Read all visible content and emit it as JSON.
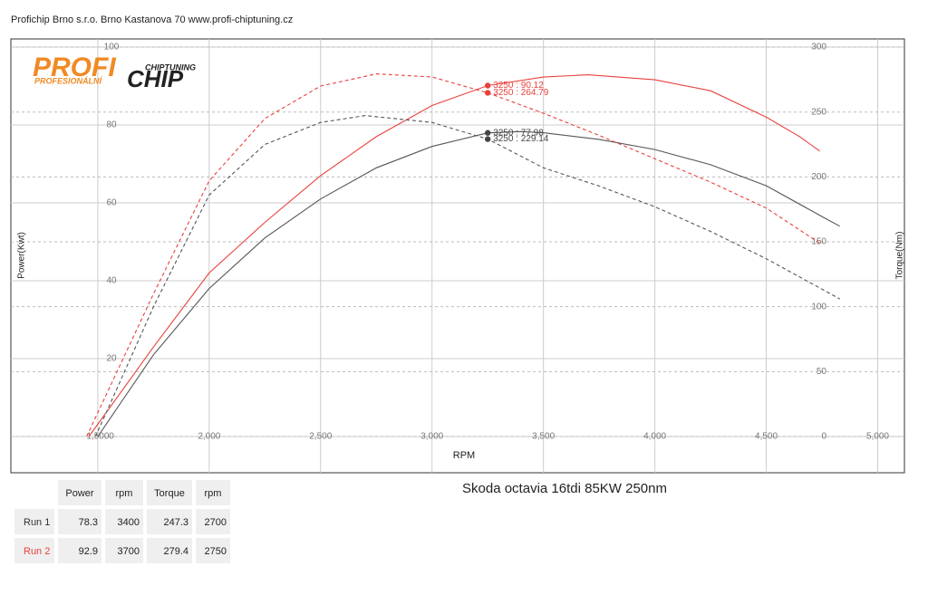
{
  "header": "Profichip Brno s.r.o. Brno Kastanova 70 www.profi-chiptuning.cz",
  "logo": {
    "main": "PROFI",
    "chip": "CHIP",
    "small_top": "CHIPTUNING",
    "small_bottom": "PROFESIONÁLNÍ"
  },
  "chart_data": {
    "type": "line",
    "title": "Skoda octavia 16tdi 85KW 250nm",
    "x_label": "RPM",
    "y_label": "Power(Kwt)",
    "y2_label": "Torque(Nm)",
    "xlim": [
      1110,
      5120
    ],
    "ylim": [
      -9.3,
      102.1
    ],
    "y2lim": [
      -27.9,
      306.3
    ],
    "xticks": [
      {
        "value": 1500,
        "label": "1,500"
      },
      {
        "value": 2000,
        "label": "2,000"
      },
      {
        "value": 2500,
        "label": "2,500"
      },
      {
        "value": 3000,
        "label": "3,000"
      },
      {
        "value": 3500,
        "label": "3,500"
      },
      {
        "value": 4000,
        "label": "4,000"
      },
      {
        "value": 4500,
        "label": "4,500"
      },
      {
        "value": 5000,
        "label": "5,000"
      }
    ],
    "yticks": [
      0,
      20,
      40,
      60,
      80,
      100
    ],
    "y2ticks": [
      0,
      50,
      100,
      150,
      200,
      250,
      300
    ],
    "grid": true,
    "series": [
      {
        "color": "#555555",
        "dashed": false,
        "axis": "y",
        "x": [
          1500,
          1750,
          2000,
          2250,
          2500,
          2750,
          3000,
          3250,
          3400,
          3500,
          3750,
          4000,
          4250,
          4500,
          4750,
          4830
        ],
        "values": [
          0,
          21,
          38,
          51,
          61,
          69,
          74.5,
          77.98,
          78.3,
          78.0,
          76.3,
          73.7,
          69.8,
          64.4,
          56.5,
          54
        ]
      },
      {
        "color": "#e8413c",
        "dashed": false,
        "axis": "y",
        "x": [
          1460,
          1750,
          2000,
          2250,
          2500,
          2750,
          3000,
          3250,
          3500,
          3700,
          4000,
          4250,
          4500,
          4650,
          4740
        ],
        "values": [
          0,
          23,
          42,
          55,
          67,
          77,
          85,
          90.12,
          92.3,
          92.9,
          91.6,
          88.8,
          82,
          77,
          73.3
        ]
      },
      {
        "color": "#555555",
        "dashed": true,
        "axis": "y2",
        "x": [
          1490,
          1750,
          2000,
          2250,
          2500,
          2700,
          3000,
          3250,
          3500,
          3750,
          4000,
          4250,
          4500,
          4830
        ],
        "values": [
          0,
          100,
          186,
          225,
          242,
          247.3,
          242,
          229.14,
          207,
          193,
          177,
          158,
          137,
          106
        ]
      },
      {
        "color": "#e8413c",
        "dashed": true,
        "axis": "y2",
        "x": [
          1450,
          1750,
          2000,
          2250,
          2500,
          2750,
          3000,
          3250,
          3500,
          3750,
          4000,
          4250,
          4500,
          4740
        ],
        "values": [
          0,
          110,
          197,
          245,
          270,
          279.4,
          277,
          264.79,
          249,
          232,
          214,
          196,
          176,
          149
        ]
      }
    ],
    "markers": [
      {
        "x": 3250,
        "y": 90.12,
        "axis": "y",
        "color": "#e8413c",
        "label": "3250 : 90.12"
      },
      {
        "x": 3250,
        "y": 264.79,
        "axis": "y2",
        "color": "#e8413c",
        "label": "3250 : 264.79"
      },
      {
        "x": 3250,
        "y": 77.98,
        "axis": "y",
        "color": "#444444",
        "label": "3250 : 77.98"
      },
      {
        "x": 3250,
        "y": 229.14,
        "axis": "y2",
        "color": "#444444",
        "label": "3250 : 229.14"
      }
    ]
  },
  "table": {
    "columns": [
      "Power",
      "rpm",
      "Torque",
      "rpm"
    ],
    "rows": [
      {
        "name": "Run 1",
        "color": "#333333",
        "cells": [
          78.3,
          3400,
          247.3,
          2700
        ]
      },
      {
        "name": "Run 2",
        "color": "#e8413c",
        "cells": [
          92.9,
          3700,
          279.4,
          2750
        ]
      }
    ]
  }
}
